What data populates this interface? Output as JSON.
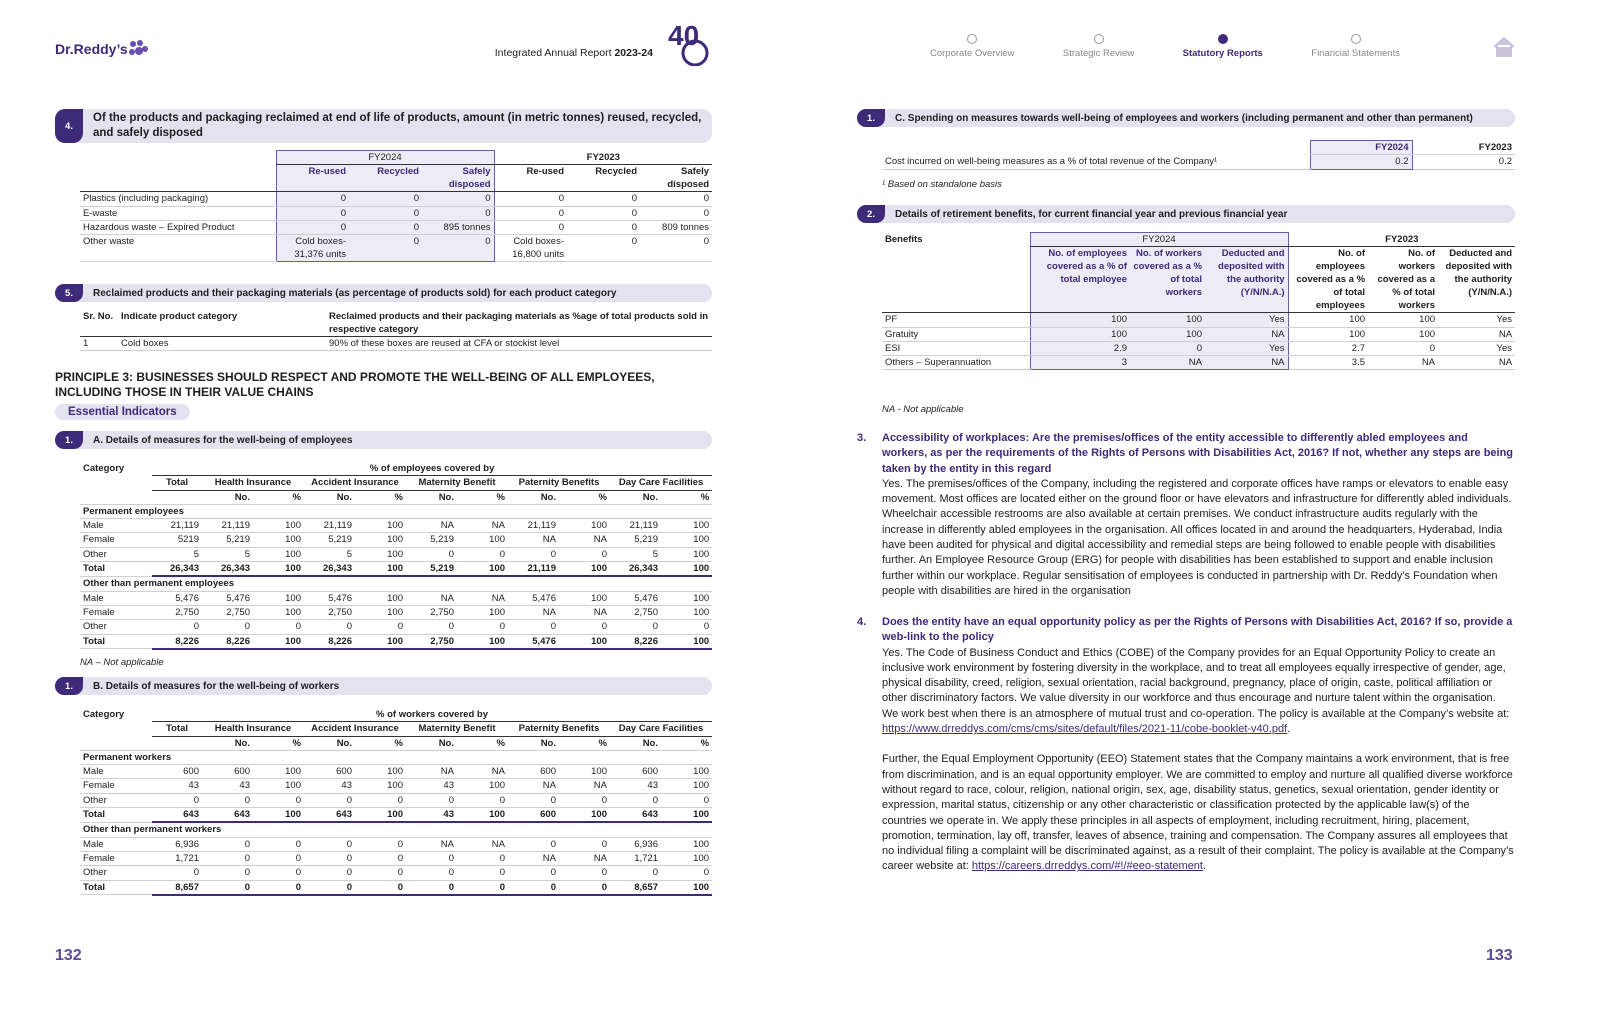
{
  "header": {
    "logo": "Dr.Reddy’s",
    "report": "Integrated Annual Report",
    "year": "2023-24",
    "badge": "40",
    "nav": [
      "Corporate Overview",
      "Strategic Review",
      "Statutory Reports",
      "Financial Statements"
    ],
    "active": 2
  },
  "left": {
    "products": {
      "num": "4.",
      "title": "Of the products and packaging reclaimed at end of life of products, amount (in metric tonnes) reused, recycled, and safely disposed",
      "table": {
        "groups": [
          "FY2024",
          "FY2023"
        ],
        "cols": [
          "Re-used",
          "Recycled",
          "Safely disposed"
        ],
        "rows": [
          [
            "Plastics (including packaging)",
            "0",
            "0",
            "0",
            "0",
            "0",
            "0"
          ],
          [
            "E-waste",
            "0",
            "0",
            "0",
            "0",
            "0",
            "0"
          ],
          [
            "Hazardous waste – Expired Product",
            "0",
            "0",
            "895 tonnes",
            "0",
            "0",
            "809 tonnes"
          ],
          [
            "Other waste",
            "Cold boxes- 31,376 units",
            "0",
            "0",
            "Cold boxes- 16,800 units",
            "0",
            "0"
          ]
        ]
      }
    },
    "reclaimed": {
      "num": "5.",
      "title": "Reclaimed products and their packaging materials (as percentage of products sold) for each product category",
      "table": {
        "header": [
          "Sr. No.",
          "Indicate product category",
          "Reclaimed products and their packaging materials as %age of total products sold in respective category"
        ],
        "rows": [
          [
            "1",
            "Cold boxes",
            "90% of these boxes are reused at CFA or stockist level"
          ]
        ]
      }
    },
    "principle": "PRINCIPLE 3: BUSINESSES SHOULD RESPECT AND PROMOTE THE WELL-BEING OF ALL EMPLOYEES, INCLUDING THOSE IN THEIR VALUE CHAINS",
    "essential": "Essential Indicators",
    "employees": {
      "num": "1.",
      "title": "A. Details of measures for the well-being of employees",
      "table": {
        "category": "Category",
        "covered": "% of employees covered by",
        "total": "Total",
        "groups": [
          "Health Insurance",
          "Accident Insurance",
          "Maternity Benefit",
          "Paternity Benefits",
          "Day Care Facilities"
        ],
        "sub": [
          "No.",
          "%"
        ],
        "blocks": [
          {
            "name": "Permanent employees",
            "rows": [
              [
                "Male",
                "21,119",
                "21,119",
                "100",
                "21,119",
                "100",
                "NA",
                "NA",
                "21,119",
                "100",
                "21,119",
                "100"
              ],
              [
                "Female",
                "5219",
                "5,219",
                "100",
                "5,219",
                "100",
                "5,219",
                "100",
                "NA",
                "NA",
                "5,219",
                "100"
              ],
              [
                "Other",
                "5",
                "5",
                "100",
                "5",
                "100",
                "0",
                "0",
                "0",
                "0",
                "5",
                "100"
              ],
              [
                "Total",
                "26,343",
                "26,343",
                "100",
                "26,343",
                "100",
                "5,219",
                "100",
                "21,119",
                "100",
                "26,343",
                "100"
              ]
            ]
          },
          {
            "name": "Other than permanent employees",
            "rows": [
              [
                "Male",
                "5,476",
                "5,476",
                "100",
                "5,476",
                "100",
                "NA",
                "NA",
                "5,476",
                "100",
                "5,476",
                "100"
              ],
              [
                "Female",
                "2,750",
                "2,750",
                "100",
                "2,750",
                "100",
                "2,750",
                "100",
                "NA",
                "NA",
                "2,750",
                "100"
              ],
              [
                "Other",
                "0",
                "0",
                "0",
                "0",
                "0",
                "0",
                "0",
                "0",
                "0",
                "0",
                "0"
              ],
              [
                "Total",
                "8,226",
                "8,226",
                "100",
                "8,226",
                "100",
                "2,750",
                "100",
                "5,476",
                "100",
                "8,226",
                "100"
              ]
            ]
          }
        ]
      },
      "note": "NA – Not applicable"
    },
    "workers": {
      "num": "1.",
      "title": "B. Details of measures for the well-being of workers",
      "table": {
        "category": "Category",
        "covered": "% of workers covered by",
        "total": "Total",
        "groups": [
          "Health Insurance",
          "Accident Insurance",
          "Maternity Benefit",
          "Paternity Benefits",
          "Day Care Facilities"
        ],
        "sub": [
          "No.",
          "%"
        ],
        "blocks": [
          {
            "name": "Permanent workers",
            "rows": [
              [
                "Male",
                "600",
                "600",
                "100",
                "600",
                "100",
                "NA",
                "NA",
                "600",
                "100",
                "600",
                "100"
              ],
              [
                "Female",
                "43",
                "43",
                "100",
                "43",
                "100",
                "43",
                "100",
                "NA",
                "NA",
                "43",
                "100"
              ],
              [
                "Other",
                "0",
                "0",
                "0",
                "0",
                "0",
                "0",
                "0",
                "0",
                "0",
                "0",
                "0"
              ],
              [
                "Total",
                "643",
                "643",
                "100",
                "643",
                "100",
                "43",
                "100",
                "600",
                "100",
                "643",
                "100"
              ]
            ]
          },
          {
            "name": "Other than permanent workers",
            "rows": [
              [
                "Male",
                "6,936",
                "0",
                "0",
                "0",
                "0",
                "NA",
                "NA",
                "0",
                "0",
                "6,936",
                "100"
              ],
              [
                "Female",
                "1,721",
                "0",
                "0",
                "0",
                "0",
                "0",
                "0",
                "NA",
                "NA",
                "1,721",
                "100"
              ],
              [
                "Other",
                "0",
                "0",
                "0",
                "0",
                "0",
                "0",
                "0",
                "0",
                "0",
                "0",
                "0"
              ],
              [
                "Total",
                "8,657",
                "0",
                "0",
                "0",
                "0",
                "0",
                "0",
                "0",
                "0",
                "8,657",
                "100"
              ]
            ]
          }
        ]
      }
    },
    "page": "132"
  },
  "right": {
    "spending": {
      "num": "1.",
      "title": "C. Spending on measures towards well-being of employees and workers (including permanent and other than permanent)",
      "table": {
        "header": [
          "FY2024",
          "FY2023"
        ],
        "rows": [
          [
            "Cost incurred on well-being measures as a % of total revenue of the Company¹",
            "0.2",
            "0.2"
          ]
        ]
      },
      "note": "¹ Based on standalone basis"
    },
    "retirement": {
      "num": "2.",
      "title": "Details of retirement benefits, for current financial year and previous financial year",
      "table": {
        "benefits": "Benefits",
        "groups": [
          "FY2024",
          "FY2023"
        ],
        "cols2024": [
          "No. of employees covered as a % of total employee",
          "No. of workers covered as a % of total workers",
          "Deducted and deposited with the authority (Y/N/N.A.)"
        ],
        "cols2023": [
          "No. of employees covered as a % of total employees",
          "No. of workers covered as a % of total workers",
          "Deducted and deposited with the authority (Y/N/N.A.)"
        ],
        "rows": [
          [
            "PF",
            "100",
            "100",
            "Yes",
            "100",
            "100",
            "Yes"
          ],
          [
            "Gratuity",
            "100",
            "100",
            "NA",
            "100",
            "100",
            "NA"
          ],
          [
            "ESI",
            "2.9",
            "0",
            "Yes",
            "2.7",
            "0",
            "Yes"
          ],
          [
            "Others – Superannuation",
            "3",
            "NA",
            "NA",
            "3.5",
            "NA",
            "NA"
          ]
        ]
      },
      "note": "NA - Not applicable"
    },
    "questions": [
      {
        "num": "3.",
        "question": "Accessibility of workplaces: Are the premises/offices of the entity accessible to differently abled employees and workers, as per the requirements of the Rights of Persons with Disabilities Act, 2016? If not, whether any steps are being taken by the entity in this regard",
        "paragraphs": [
          {
            "text": "Yes. The premises/offices of the Company, including the registered and corporate offices have ramps or elevators to enable easy movement. Most offices are located either on the ground floor or have elevators and infrastructure for differently abled individuals. Wheelchair accessible restrooms are also available at certain premises. We conduct infrastructure audits regularly with the increase in differently abled employees in the organisation. All offices located in and around the headquarters, Hyderabad, India have been audited for physical and digital accessibility and remedial steps are being followed to enable people with disabilities further. An Employee Resource Group (ERG) for people with disabilities has been established to support and enable inclusion further within our workplace. Regular sensitisation of employees is conducted in partnership with Dr. Reddy’s Foundation when people with disabilities are hired in the organisation"
          }
        ]
      },
      {
        "num": "4.",
        "question": "Does the entity have an equal opportunity policy as per the Rights of Persons with Disabilities Act, 2016? If so, provide a web-link to the policy",
        "paragraphs": [
          {
            "text": "Yes. The Code of Business Conduct and Ethics (COBE) of the Company provides for an Equal Opportunity Policy to create an inclusive work environment by fostering diversity in the workplace, and to treat all employees equally irrespective of gender, age, physical disability, creed, religion, sexual orientation, racial background, pregnancy, place of origin, caste, political affiliation or other discriminatory factors. We value diversity in our workforce and thus encourage and nurture talent within the organisation. We work best when there is an atmosphere of mutual trust and co-operation. The policy is available at the Company’s website at: ",
            "link": "https://www.drreddys.com/cms/cms/sites/default/files/2021-11/cobe-booklet-v40.pdf",
            "after": "."
          },
          {
            "text": "Further, the Equal Employment Opportunity (EEO) Statement states that the Company maintains a work environment, that is free from discrimination, and is an equal opportunity employer. We are committed to employ and nurture all qualified diverse workforce without regard to race, colour, religion, national origin, sex, age, disability status, genetics, sexual orientation, gender identity or expression, marital status, citizenship or any other characteristic or classification protected by the applicable law(s) of the countries we operate in. We apply these principles in all aspects of employment, including recruitment, hiring, placement, promotion, termination, lay off, transfer, leaves of absence, training and compensation. The Company assures all employees that no individual filing a complaint will be discriminated against, as a result of their complaint. The policy is available at the Company’s career website at: ",
            "link": "https://careers.drreddys.com/#!/#eeo-statement",
            "after": "."
          }
        ]
      }
    ],
    "page": "133"
  }
}
